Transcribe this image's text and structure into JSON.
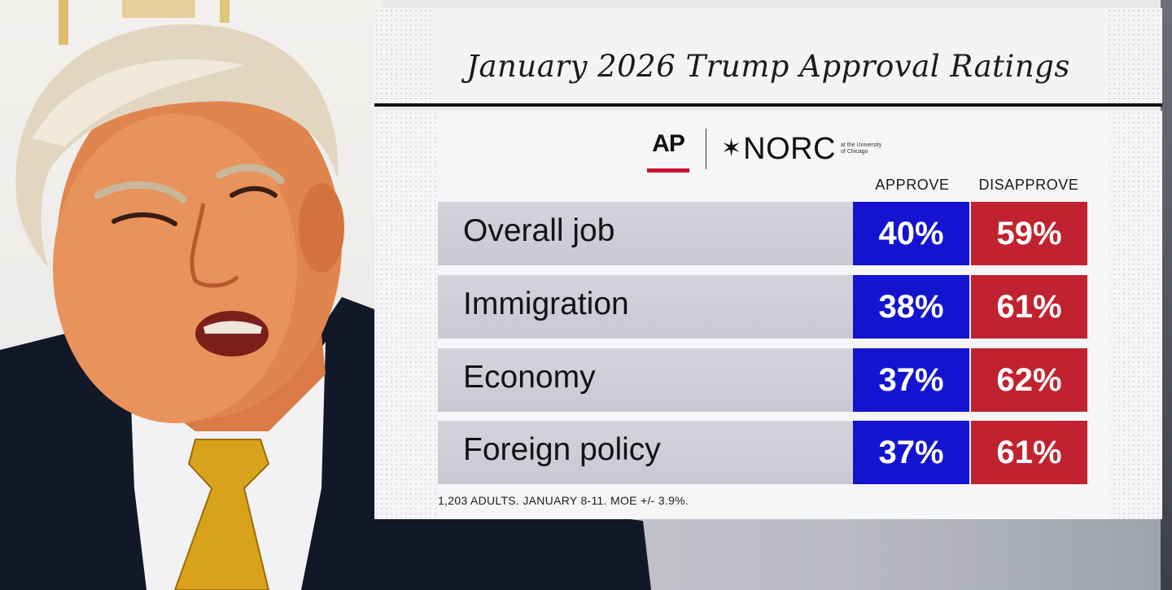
{
  "chart_data": {
    "type": "table",
    "title": "January 2026 Trump Approval Ratings",
    "source_logos": [
      "AP",
      "NORC"
    ],
    "norc_subtitle": "at the University of Chicago",
    "columns": [
      "APPROVE",
      "DISAPPROVE"
    ],
    "categories": [
      "Overall job",
      "Immigration",
      "Economy",
      "Foreign policy"
    ],
    "series": [
      {
        "name": "APPROVE",
        "values": [
          40,
          38,
          37,
          37
        ],
        "color": "#1414d0"
      },
      {
        "name": "DISAPPROVE",
        "values": [
          59,
          61,
          62,
          61
        ],
        "color": "#c0232f"
      }
    ],
    "rows": [
      {
        "label": "Overall job",
        "approve": "40%",
        "disapprove": "59%"
      },
      {
        "label": "Immigration",
        "approve": "38%",
        "disapprove": "61%"
      },
      {
        "label": "Economy",
        "approve": "37%",
        "disapprove": "62%"
      },
      {
        "label": "Foreign policy",
        "approve": "37%",
        "disapprove": "61%"
      }
    ],
    "footnote": "1,203 ADULTS. JANUARY 8-11. MOE +/- 3.9%."
  },
  "logos": {
    "ap": "AP",
    "norc_star": "✶",
    "norc": "NORC",
    "norc_sub": "at the University of Chicago"
  }
}
